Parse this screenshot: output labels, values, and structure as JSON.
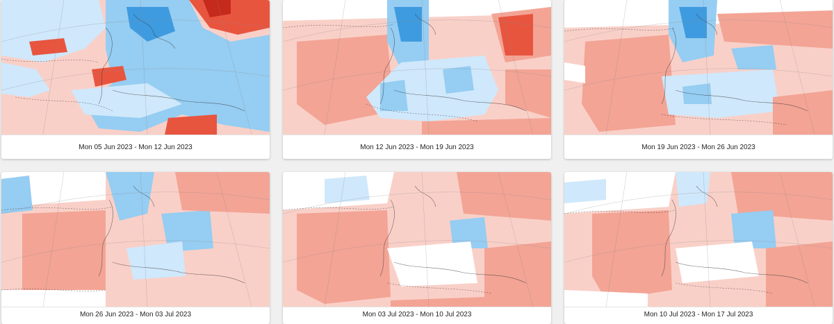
{
  "panels": [
    {
      "label": "Mon 05 Jun 2023 - Mon 12 Jun 2023"
    },
    {
      "label": "Mon 12 Jun 2023 - Mon 19 Jun 2023"
    },
    {
      "label": "Mon 19 Jun 2023 - Mon 26 Jun 2023"
    },
    {
      "label": "Mon 26 Jun 2023 - Mon 03 Jul 2023"
    },
    {
      "label": "Mon 03 Jul 2023 - Mon 10 Jul 2023"
    },
    {
      "label": "Mon 10 Jul 2023 - Mon 17 Jul 2023"
    }
  ],
  "colors": {
    "warm_light": "#f9d0c8",
    "warm_mid": "#f3a495",
    "warm_strong": "#e8553f",
    "warm_extreme": "#c52a1c",
    "cool_light": "#cfe8fb",
    "cool_mid": "#96cdf2",
    "cool_strong": "#3f9be0",
    "neutral": "#ffffff"
  }
}
